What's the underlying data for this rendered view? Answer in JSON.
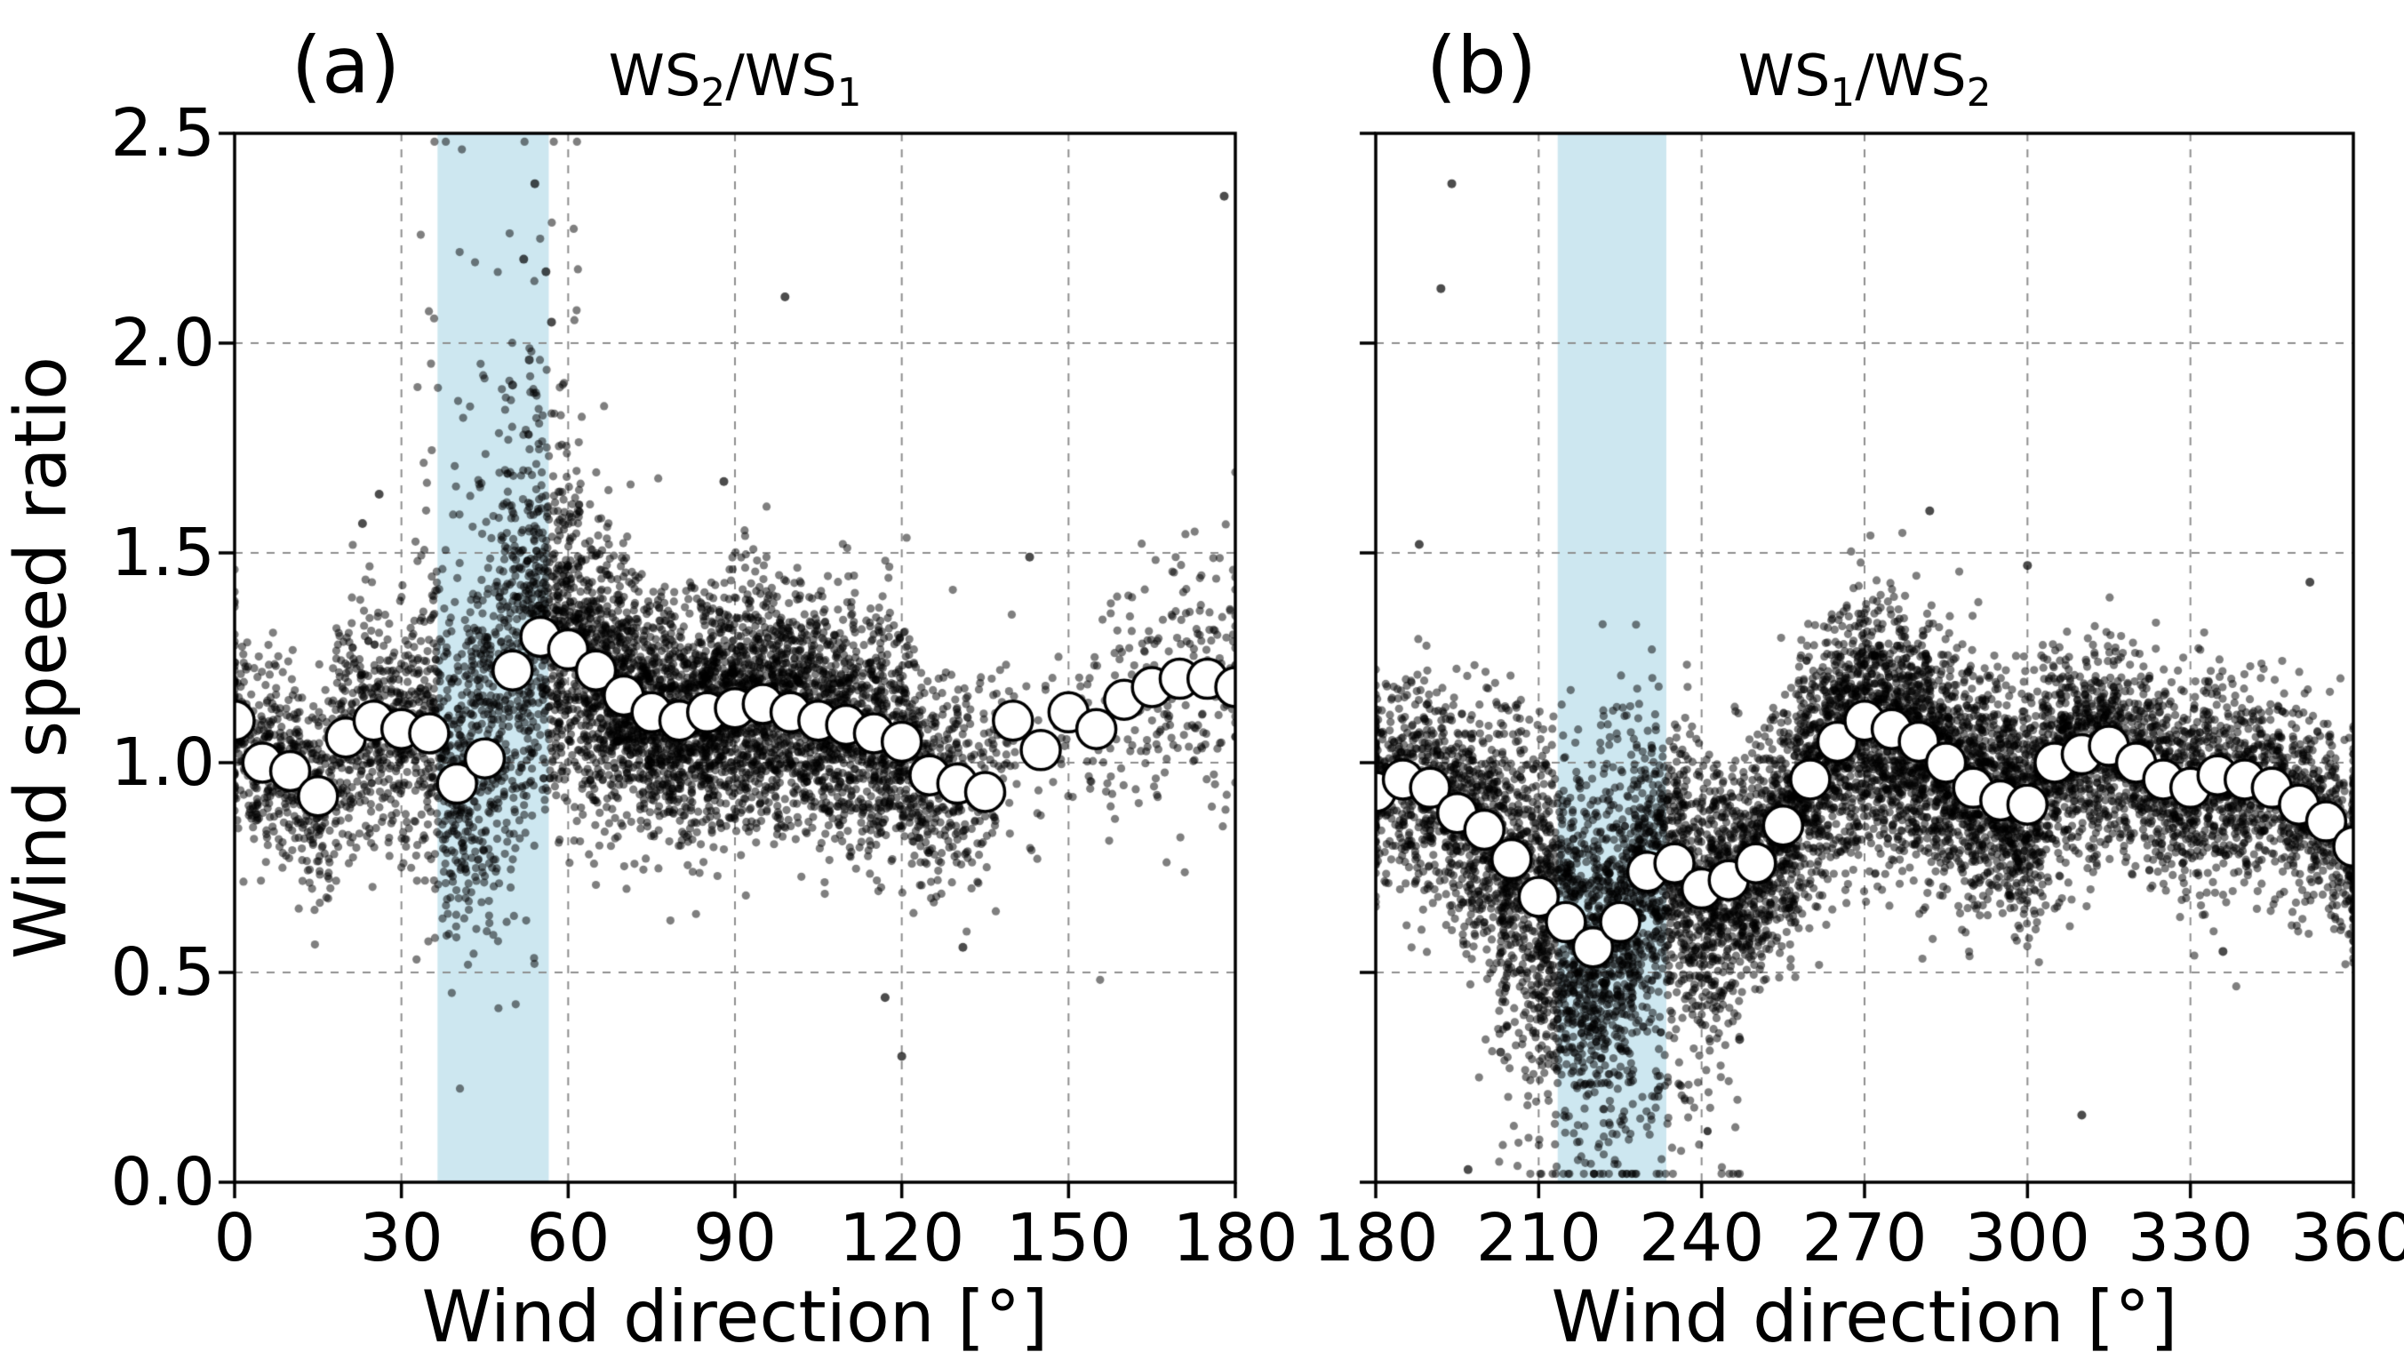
{
  "figure": {
    "ylabel": "Wind speed ratio",
    "background": "#ffffff",
    "colors": {
      "scatter": "#000000",
      "scatter_alpha": 0.5,
      "mean_fill": "#ffffff",
      "mean_edge": "#000000",
      "band": "#cde7f0",
      "grid": "#8f8f8f",
      "spine": "#000000"
    }
  },
  "chart_data": [
    {
      "type": "scatter",
      "panel_label": "(a)",
      "title": "WS2/WS1",
      "title_segments": [
        {
          "t": "WS"
        },
        {
          "t": "2",
          "sub": true
        },
        {
          "t": "/WS"
        },
        {
          "t": "1",
          "sub": true
        }
      ],
      "xlabel": "Wind direction [°]",
      "xlim": [
        0,
        180
      ],
      "ylim": [
        0.0,
        2.5
      ],
      "xticks": [
        0,
        30,
        60,
        90,
        120,
        150,
        180
      ],
      "xtick_labels": [
        "0",
        "30",
        "60",
        "90",
        "120",
        "150",
        "180"
      ],
      "yticks": [
        0.0,
        0.5,
        1.0,
        1.5,
        2.0,
        2.5
      ],
      "ytick_labels": [
        "0.0",
        "0.5",
        "1.0",
        "1.5",
        "2.0",
        "2.5"
      ],
      "show_ytick_labels": true,
      "band_x": [
        36.5,
        56.5
      ],
      "bin_step": 5,
      "seed": 7,
      "bin_x": [
        0,
        5,
        10,
        15,
        20,
        25,
        30,
        35,
        40,
        45,
        50,
        55,
        60,
        65,
        70,
        75,
        80,
        85,
        90,
        95,
        100,
        105,
        110,
        115,
        120,
        125,
        130,
        135,
        140,
        145,
        150,
        155,
        160,
        165,
        170,
        175,
        180
      ],
      "bin_means": [
        1.1,
        1.0,
        0.98,
        0.92,
        1.06,
        1.1,
        1.08,
        1.07,
        0.95,
        1.01,
        1.22,
        1.3,
        1.27,
        1.22,
        1.16,
        1.12,
        1.1,
        1.12,
        1.13,
        1.14,
        1.12,
        1.1,
        1.09,
        1.07,
        1.05,
        0.97,
        0.95,
        0.93,
        1.1,
        1.03,
        1.12,
        1.08,
        1.15,
        1.18,
        1.2,
        1.2,
        1.18
      ],
      "scatter_counts": [
        120,
        140,
        150,
        150,
        160,
        160,
        170,
        200,
        220,
        230,
        240,
        300,
        330,
        340,
        350,
        350,
        350,
        350,
        340,
        330,
        320,
        300,
        280,
        260,
        220,
        150,
        110,
        70,
        25,
        20,
        18,
        25,
        35,
        45,
        50,
        55,
        40
      ],
      "scatter_sigma": [
        0.12,
        0.12,
        0.12,
        0.12,
        0.13,
        0.13,
        0.14,
        0.18,
        0.2,
        0.22,
        0.24,
        0.22,
        0.18,
        0.16,
        0.15,
        0.14,
        0.14,
        0.14,
        0.14,
        0.14,
        0.14,
        0.14,
        0.14,
        0.14,
        0.14,
        0.13,
        0.13,
        0.13,
        0.12,
        0.12,
        0.12,
        0.13,
        0.15,
        0.16,
        0.16,
        0.16,
        0.15
      ],
      "tail": {
        "range": [
          33,
          62
        ],
        "dir": 1,
        "frac": 0.12,
        "scale": 0.5
      },
      "outliers": [
        [
          54,
          2.38
        ],
        [
          52,
          2.2
        ],
        [
          56,
          2.17
        ],
        [
          57,
          2.05
        ],
        [
          53,
          1.96
        ],
        [
          50,
          1.9
        ],
        [
          99,
          2.11
        ],
        [
          178,
          2.35
        ],
        [
          120,
          0.3
        ],
        [
          117,
          0.44
        ],
        [
          131,
          0.56
        ],
        [
          88,
          1.67
        ],
        [
          26,
          1.64
        ],
        [
          23,
          1.57
        ],
        [
          143,
          1.49
        ]
      ]
    },
    {
      "type": "scatter",
      "panel_label": "(b)",
      "title": "WS1/WS2",
      "title_segments": [
        {
          "t": "WS"
        },
        {
          "t": "1",
          "sub": true
        },
        {
          "t": "/WS"
        },
        {
          "t": "2",
          "sub": true
        }
      ],
      "xlabel": "Wind direction [°]",
      "xlim": [
        180,
        360
      ],
      "ylim": [
        0.0,
        2.5
      ],
      "xticks": [
        180,
        210,
        240,
        270,
        300,
        330,
        360
      ],
      "xtick_labels": [
        "180",
        "210",
        "240",
        "270",
        "300",
        "330",
        "360"
      ],
      "yticks": [
        0.0,
        0.5,
        1.0,
        1.5,
        2.0,
        2.5
      ],
      "ytick_labels": [
        "0.0",
        "0.5",
        "1.0",
        "1.5",
        "2.0",
        "2.5"
      ],
      "show_ytick_labels": false,
      "band_x": [
        213.5,
        233.5
      ],
      "bin_step": 5,
      "seed": 13,
      "bin_x": [
        180,
        185,
        190,
        195,
        200,
        205,
        210,
        215,
        220,
        225,
        230,
        235,
        240,
        245,
        250,
        255,
        260,
        265,
        270,
        275,
        280,
        285,
        290,
        295,
        300,
        305,
        310,
        315,
        320,
        325,
        330,
        335,
        340,
        345,
        350,
        355,
        360
      ],
      "bin_means": [
        0.93,
        0.96,
        0.94,
        0.88,
        0.84,
        0.77,
        0.68,
        0.62,
        0.56,
        0.62,
        0.74,
        0.76,
        0.7,
        0.72,
        0.76,
        0.85,
        0.96,
        1.05,
        1.1,
        1.08,
        1.05,
        1.0,
        0.94,
        0.91,
        0.9,
        1.0,
        1.02,
        1.04,
        1.0,
        0.96,
        0.94,
        0.97,
        0.96,
        0.94,
        0.9,
        0.86,
        0.8
      ],
      "scatter_counts": [
        150,
        180,
        200,
        220,
        260,
        300,
        330,
        350,
        360,
        360,
        340,
        320,
        300,
        300,
        300,
        310,
        320,
        330,
        340,
        350,
        350,
        340,
        330,
        320,
        300,
        280,
        260,
        240,
        220,
        210,
        200,
        200,
        190,
        180,
        170,
        160,
        140
      ],
      "scatter_sigma": [
        0.11,
        0.11,
        0.12,
        0.13,
        0.15,
        0.17,
        0.19,
        0.2,
        0.2,
        0.2,
        0.18,
        0.16,
        0.15,
        0.14,
        0.14,
        0.14,
        0.14,
        0.15,
        0.15,
        0.15,
        0.15,
        0.14,
        0.14,
        0.13,
        0.13,
        0.13,
        0.13,
        0.12,
        0.12,
        0.12,
        0.12,
        0.12,
        0.12,
        0.12,
        0.12,
        0.12,
        0.12
      ],
      "tail": {
        "range": [
          203,
          247
        ],
        "dir": -1,
        "frac": 0.16,
        "scale": 0.38
      },
      "outliers": [
        [
          194,
          2.38
        ],
        [
          192,
          2.13
        ],
        [
          197,
          0.03
        ],
        [
          310,
          0.16
        ],
        [
          336,
          0.55
        ],
        [
          247,
          0.34
        ],
        [
          203,
          0.31
        ],
        [
          352,
          1.43
        ],
        [
          300,
          1.47
        ],
        [
          282,
          1.6
        ],
        [
          232,
          0.22
        ],
        [
          188,
          1.52
        ]
      ]
    }
  ]
}
